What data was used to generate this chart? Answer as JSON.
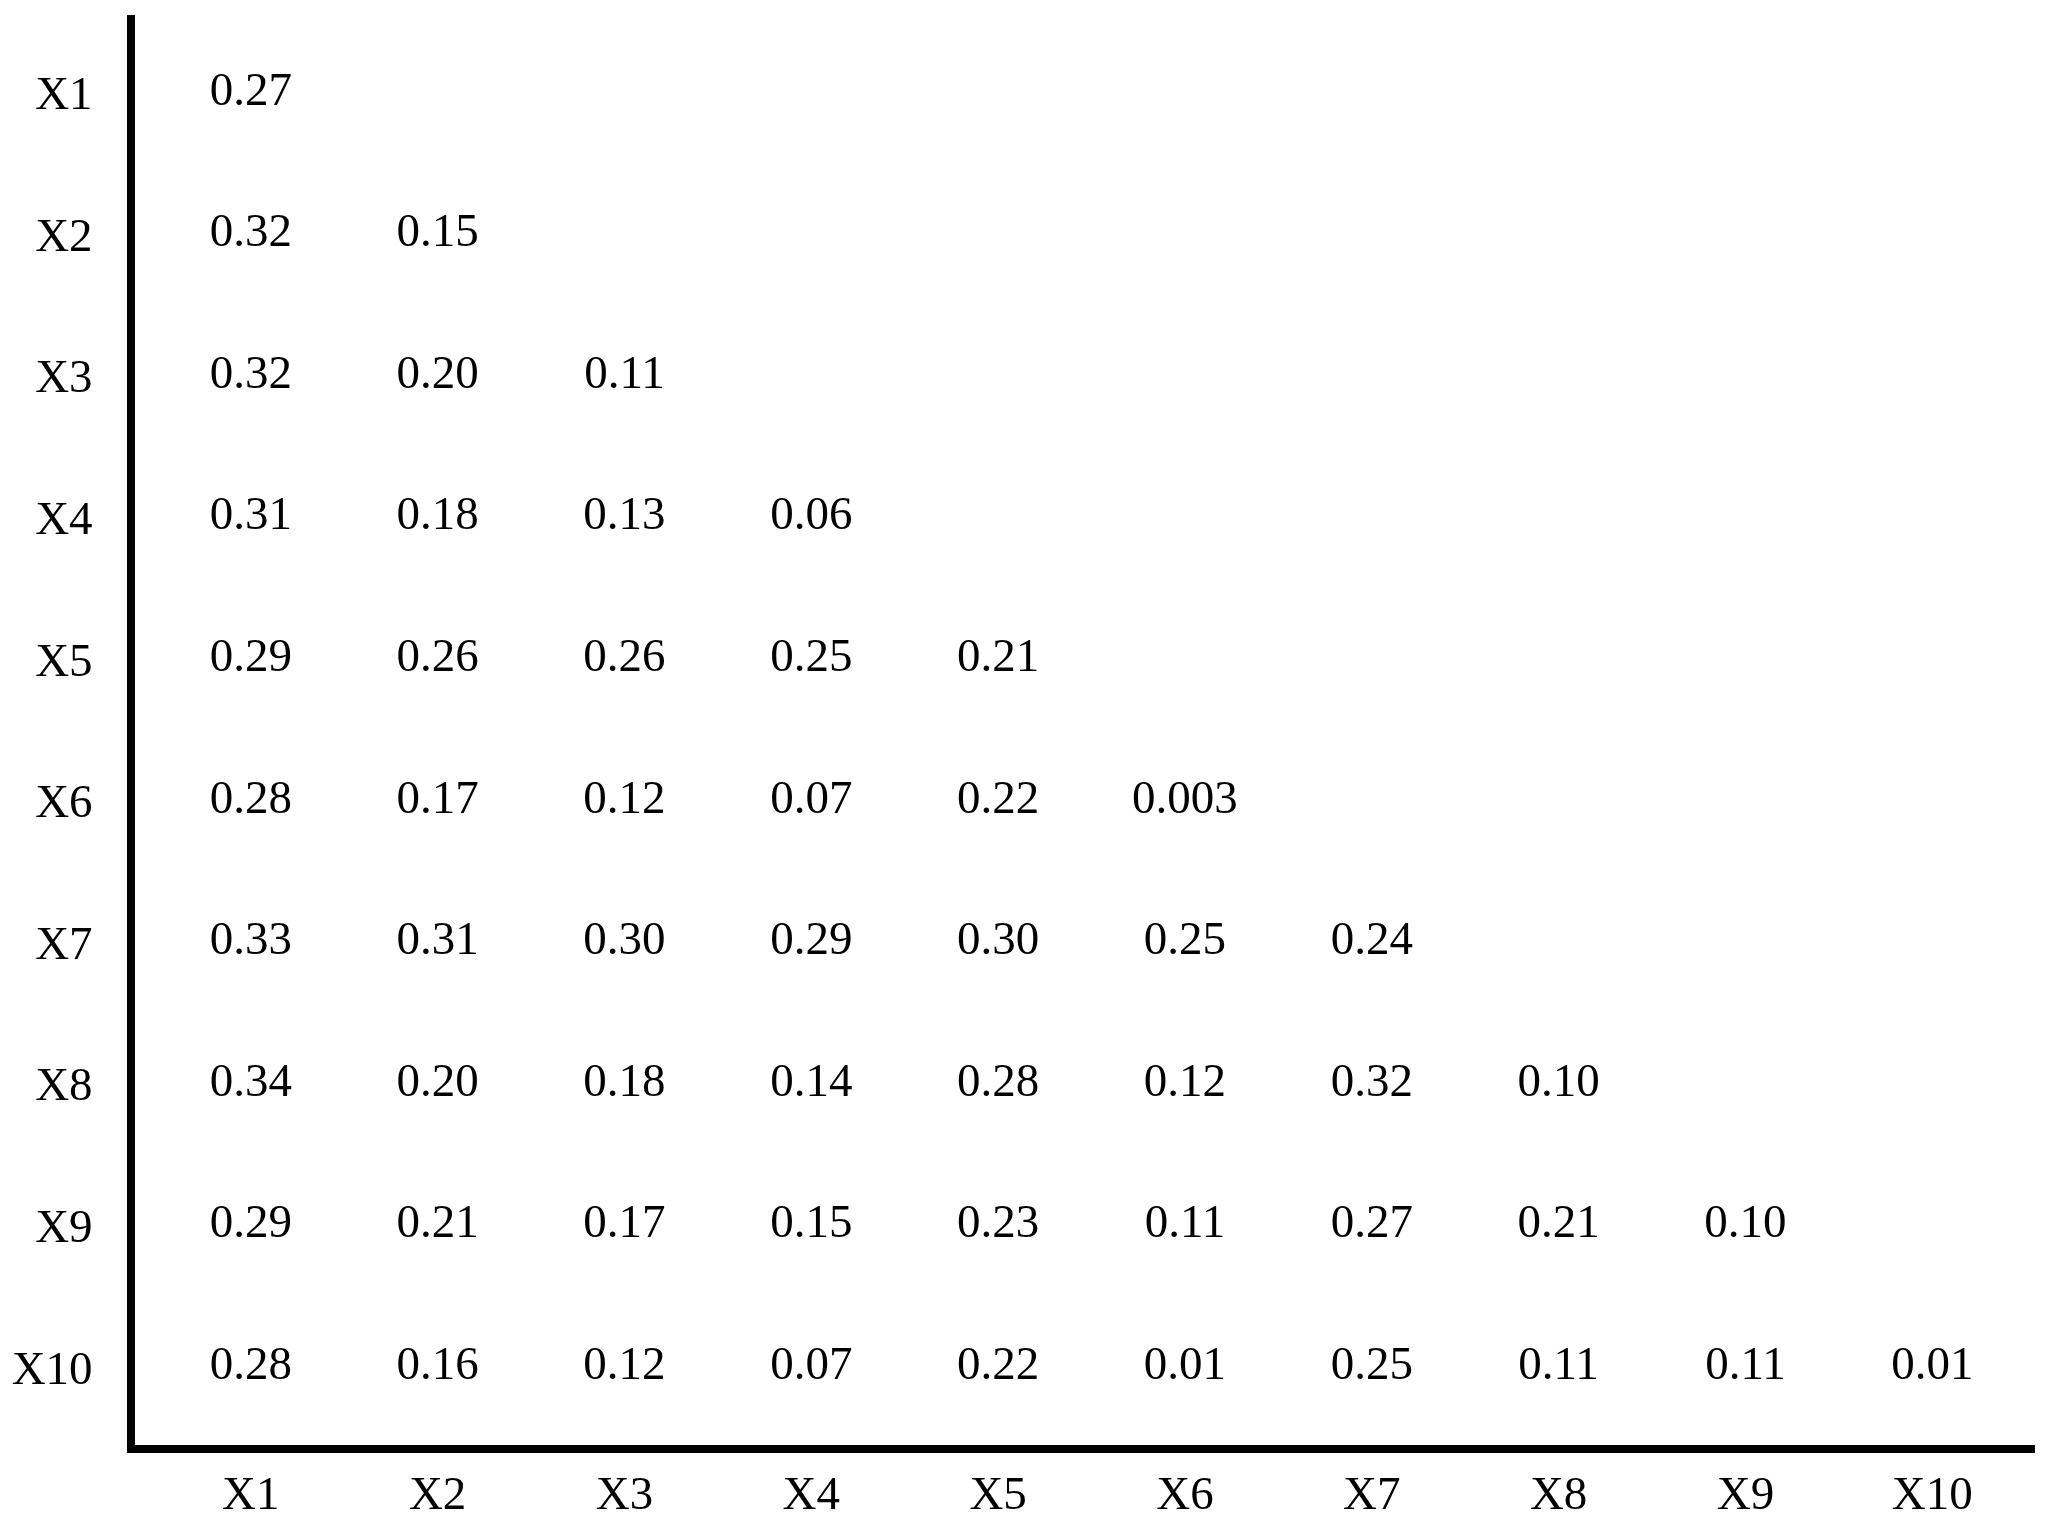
{
  "chart_data": {
    "type": "heatmap",
    "data_labels": true,
    "categories": [
      "X1",
      "X2",
      "X3",
      "X4",
      "X5",
      "X6",
      "X7",
      "X8",
      "X9",
      "X10"
    ],
    "y_categories": [
      "X1",
      "X2",
      "X3",
      "X4",
      "X5",
      "X6",
      "X7",
      "X8",
      "X9",
      "X10"
    ],
    "cells": [
      [
        0.27,
        null,
        null,
        null,
        null,
        null,
        null,
        null,
        null,
        null
      ],
      [
        0.32,
        0.15,
        null,
        null,
        null,
        null,
        null,
        null,
        null,
        null
      ],
      [
        0.32,
        0.2,
        0.11,
        null,
        null,
        null,
        null,
        null,
        null,
        null
      ],
      [
        0.31,
        0.18,
        0.13,
        0.06,
        null,
        null,
        null,
        null,
        null,
        null
      ],
      [
        0.29,
        0.26,
        0.26,
        0.25,
        0.21,
        null,
        null,
        null,
        null,
        null
      ],
      [
        0.28,
        0.17,
        0.12,
        0.07,
        0.22,
        0.003,
        null,
        null,
        null,
        null
      ],
      [
        0.33,
        0.31,
        0.3,
        0.29,
        0.3,
        0.25,
        0.24,
        null,
        null,
        null
      ],
      [
        0.34,
        0.2,
        0.18,
        0.14,
        0.28,
        0.12,
        0.32,
        0.1,
        null,
        null
      ],
      [
        0.29,
        0.21,
        0.17,
        0.15,
        0.23,
        0.11,
        0.27,
        0.21,
        0.1,
        null
      ],
      [
        0.28,
        0.16,
        0.12,
        0.07,
        0.22,
        0.01,
        0.25,
        0.11,
        0.11,
        0.01
      ]
    ],
    "cell_labels": [
      [
        "0.27",
        null,
        null,
        null,
        null,
        null,
        null,
        null,
        null,
        null
      ],
      [
        "0.32",
        "0.15",
        null,
        null,
        null,
        null,
        null,
        null,
        null,
        null
      ],
      [
        "0.32",
        "0.20",
        "0.11",
        null,
        null,
        null,
        null,
        null,
        null,
        null
      ],
      [
        "0.31",
        "0.18",
        "0.13",
        "0.06",
        null,
        null,
        null,
        null,
        null,
        null
      ],
      [
        "0.29",
        "0.26",
        "0.26",
        "0.25",
        "0.21",
        null,
        null,
        null,
        null,
        null
      ],
      [
        "0.28",
        "0.17",
        "0.12",
        "0.07",
        "0.22",
        "0.003",
        null,
        null,
        null,
        null
      ],
      [
        "0.33",
        "0.31",
        "0.30",
        "0.29",
        "0.30",
        "0.25",
        "0.24",
        null,
        null,
        null
      ],
      [
        "0.34",
        "0.20",
        "0.18",
        "0.14",
        "0.28",
        "0.12",
        "0.32",
        "0.10",
        null,
        null
      ],
      [
        "0.29",
        "0.21",
        "0.17",
        "0.15",
        "0.23",
        "0.11",
        "0.27",
        "0.21",
        "0.10",
        null
      ],
      [
        "0.28",
        "0.16",
        "0.12",
        "0.07",
        "0.22",
        "0.01",
        "0.25",
        "0.11",
        "0.11",
        "0.01"
      ]
    ]
  }
}
